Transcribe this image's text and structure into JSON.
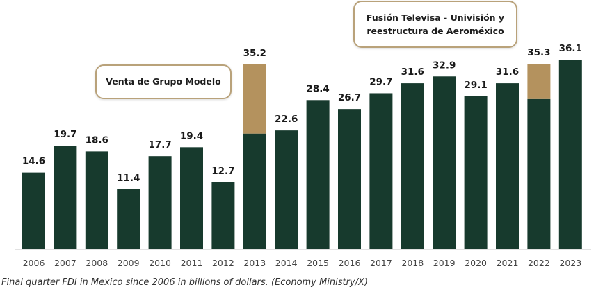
{
  "chart_data": {
    "type": "bar",
    "stacked": true,
    "categories": [
      "2006",
      "2007",
      "2008",
      "2009",
      "2010",
      "2011",
      "2012",
      "2013",
      "2014",
      "2015",
      "2016",
      "2017",
      "2018",
      "2019",
      "2020",
      "2021",
      "2022",
      "2023"
    ],
    "values": [
      14.6,
      19.7,
      18.6,
      11.4,
      17.7,
      19.4,
      12.7,
      35.2,
      22.6,
      28.4,
      26.7,
      29.7,
      31.6,
      32.9,
      29.1,
      31.6,
      35.3,
      36.1
    ],
    "data_labels": [
      "14.6",
      "19.7",
      "18.6",
      "11.4",
      "17.7",
      "19.4",
      "12.7",
      "35.2",
      "22.6",
      "28.4",
      "26.7",
      "29.7",
      "31.6",
      "32.9",
      "29.1",
      "31.6",
      "35.3",
      "36.1"
    ],
    "series": [
      {
        "values": [
          14.6,
          19.7,
          18.6,
          11.4,
          17.7,
          19.4,
          12.7,
          22.0,
          22.6,
          28.4,
          26.7,
          29.7,
          31.6,
          32.9,
          29.1,
          31.6,
          28.6,
          36.1
        ],
        "color": "#173a2d"
      },
      {
        "values": [
          0,
          0,
          0,
          0,
          0,
          0,
          0,
          13.2,
          0,
          0,
          0,
          0,
          0,
          0,
          0,
          0,
          6.7,
          0
        ],
        "color": "#b4925e"
      }
    ],
    "ylim": [
      0,
      37
    ],
    "grid": false,
    "annotations": [
      {
        "text": "Venta de Grupo Modelo",
        "category": "2013"
      },
      {
        "text_lines": [
          "Fusión Televisa - Univisión y",
          "reestructura de Aeroméxico"
        ],
        "category": "2022"
      }
    ],
    "xlabel": "",
    "ylabel": "",
    "title": ""
  },
  "caption": "Final quarter FDI in Mexico since 2006 in billions of dollars. (Economy Ministry/X)"
}
